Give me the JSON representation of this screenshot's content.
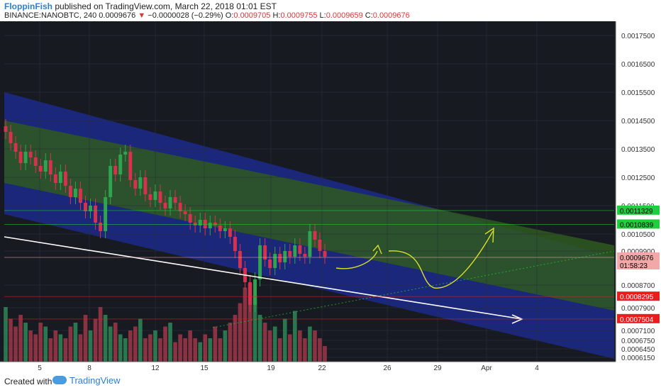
{
  "header": {
    "author": "FloppinFish",
    "published": "published on TradingView.com, March 22, 2018 01:01 EST",
    "symbol": "BINANCE:NANOBTC, 240",
    "last": "0.0009676",
    "change": "−0.0000028 (−0.29%)",
    "o_label": "O:",
    "o": "0.0009705",
    "h_label": "H:",
    "h": "0.0009755",
    "l_label": "L:",
    "l": "0.0009659",
    "c_label": "C:",
    "c": "0.0009676"
  },
  "footer": {
    "created": "Created with",
    "brand": "TradingView"
  },
  "chart_data": {
    "type": "candlestick",
    "symbol": "BINANCE:NANOBTC",
    "interval": "240",
    "ylim": [
      0.0006,
      0.0018
    ],
    "y_ticks": [
      "0.0017500",
      "0.0016500",
      "0.0015500",
      "0.0014500",
      "0.0013500",
      "0.0012500",
      "0.0011500",
      "0.0010500",
      "0.0009900",
      "0.0008700",
      "0.0007900",
      "0.0007100",
      "0.0006750",
      "0.0006450",
      "0.0006150"
    ],
    "x_ticks": [
      "5",
      "8",
      "12",
      "15",
      "19",
      "22",
      "26",
      "29",
      "Apr",
      "4"
    ],
    "price_labels": [
      {
        "text": "0.0011329",
        "value": 0.0011329,
        "color": "#1fce3c",
        "text_color": "#000000"
      },
      {
        "text": "0.0010839",
        "value": 0.0010839,
        "color": "#1fce3c",
        "text_color": "#000000"
      },
      {
        "text": "0.0009676",
        "value": 0.0009676,
        "color": "#f2a8a8",
        "text_color": "#000000"
      },
      {
        "text": "01:58:23",
        "value": 0.00094,
        "color": "#f2a8a8",
        "text_color": "#000000"
      },
      {
        "text": "0.0008295",
        "value": 0.0008295,
        "color": "#e81e1e",
        "text_color": "#ffffff"
      },
      {
        "text": "0.0007504",
        "value": 0.0007504,
        "color": "#e81e1e",
        "text_color": "#ffffff"
      }
    ],
    "series_close": [
      0.00141,
      0.00137,
      0.00134,
      0.0013,
      0.00134,
      0.00132,
      0.00129,
      0.00127,
      0.00131,
      0.00126,
      0.00123,
      0.00127,
      0.00122,
      0.00118,
      0.00121,
      0.00116,
      0.00113,
      0.00115,
      0.00109,
      0.00106,
      0.00118,
      0.00129,
      0.00126,
      0.00133,
      0.00134,
      0.00124,
      0.00121,
      0.00125,
      0.00119,
      0.00117,
      0.0012,
      0.00116,
      0.00114,
      0.00118,
      0.00116,
      0.00113,
      0.00112,
      0.00109,
      0.00108,
      0.0011,
      0.00107,
      0.00109,
      0.00108,
      0.00106,
      0.00107,
      0.00104,
      0.00099,
      0.00093,
      0.00088,
      0.0008,
      0.00089,
      0.00101,
      0.00096,
      0.00093,
      0.00098,
      0.00095,
      0.00099,
      0.00097,
      0.00101,
      0.00098,
      0.00097,
      0.00106,
      0.00103,
      0.00099,
      0.00097
    ],
    "volume": [
      0.7,
      0.55,
      0.45,
      0.6,
      0.5,
      0.4,
      0.35,
      0.5,
      0.45,
      0.3,
      0.4,
      0.35,
      0.3,
      0.45,
      0.5,
      0.35,
      0.6,
      0.4,
      0.55,
      0.7,
      0.6,
      0.45,
      0.5,
      0.35,
      0.3,
      0.4,
      0.45,
      0.55,
      0.3,
      0.35,
      0.4,
      0.3,
      0.45,
      0.5,
      0.25,
      0.35,
      0.3,
      0.4,
      0.3,
      0.25,
      0.35,
      0.3,
      0.45,
      0.3,
      0.4,
      0.5,
      0.6,
      0.75,
      0.95,
      1.0,
      0.85,
      0.6,
      0.5,
      0.4,
      0.45,
      0.3,
      0.55,
      0.35,
      0.65,
      0.4,
      0.3,
      0.45,
      0.4,
      0.3,
      0.2
    ],
    "channels": [
      {
        "name": "outer-channel",
        "color": "#1c2a8a",
        "top_start": 0.00155,
        "top_end": 0.00097,
        "bottom_start": 0.00112,
        "bottom_end": 0.00061
      },
      {
        "name": "inner-channel",
        "color": "#2e5a1f",
        "top_start": 0.00145,
        "top_end": 0.00101,
        "bottom_start": 0.00123,
        "bottom_end": 0.00078
      }
    ],
    "trendline": {
      "color": "#ffffff",
      "start": 0.00104,
      "end": 0.00075
    },
    "annotation_color": "#d9e02a",
    "grid": true,
    "axis_position": "right"
  }
}
